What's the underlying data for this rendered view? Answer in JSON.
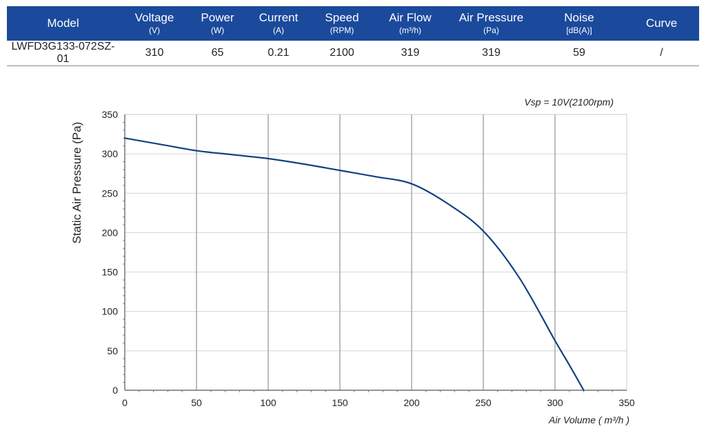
{
  "table": {
    "headers": [
      {
        "name": "Model",
        "unit": ""
      },
      {
        "name": "Voltage",
        "unit": "(V)"
      },
      {
        "name": "Power",
        "unit": "(W)"
      },
      {
        "name": "Current",
        "unit": "(A)"
      },
      {
        "name": "Speed",
        "unit": "(RPM)"
      },
      {
        "name": "Air Flow",
        "unit": "(m³/h)"
      },
      {
        "name": "Air Pressure",
        "unit": "(Pa)"
      },
      {
        "name": "Noise",
        "unit": "[dB(A)]"
      },
      {
        "name": "Curve",
        "unit": ""
      }
    ],
    "row": [
      "LWFD3G133-072SZ-01",
      "310",
      "65",
      "0.21",
      "2100",
      "319",
      "319",
      "59",
      "/"
    ],
    "header_color": "#1b4a9c"
  },
  "chart_data": {
    "type": "line",
    "title": "",
    "annotation": "Vsp = 10V(2100rpm)",
    "xlabel": "Air Volume ( m³/h )",
    "ylabel": "Static Air Pressure  (Pa)",
    "xlim": [
      0,
      350
    ],
    "ylim": [
      0,
      350
    ],
    "x_ticks": [
      0,
      50,
      100,
      150,
      200,
      250,
      300,
      350
    ],
    "y_ticks": [
      0,
      50,
      100,
      150,
      200,
      250,
      300,
      350
    ],
    "grid": true,
    "line_color": "#12427f",
    "series": [
      {
        "name": "",
        "x": [
          0,
          25,
          50,
          75,
          100,
          125,
          150,
          175,
          200,
          225,
          250,
          275,
          300,
          310,
          320
        ],
        "y": [
          320,
          312,
          304,
          299,
          294,
          287,
          279,
          271,
          262,
          237,
          202,
          143,
          63,
          32,
          0
        ]
      }
    ]
  }
}
